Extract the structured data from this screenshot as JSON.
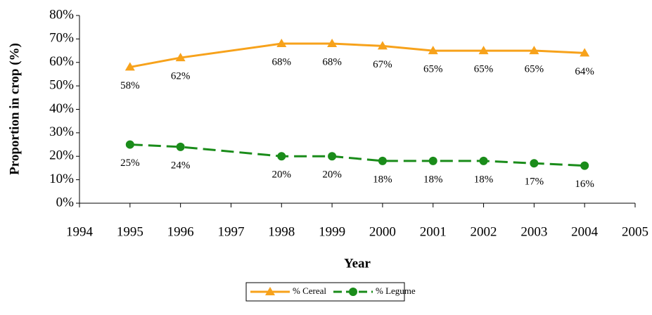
{
  "chart_data": {
    "type": "line",
    "y_label": "Proportion in crop (%)",
    "x_label": "Year",
    "x": [
      1995,
      1996,
      1998,
      1999,
      2000,
      2001,
      2002,
      2003,
      2004
    ],
    "series": [
      {
        "name": "% Cereal",
        "color": "#f7a21b",
        "marker": "triangle",
        "line_style": "solid",
        "values": [
          58,
          62,
          68,
          68,
          67,
          65,
          65,
          65,
          64
        ],
        "value_labels": [
          "58%",
          "62%",
          "68%",
          "68%",
          "67%",
          "65%",
          "65%",
          "65%",
          "64%"
        ]
      },
      {
        "name": "% Legume",
        "color": "#1a8c1a",
        "marker": "circle",
        "line_style": "dashed",
        "values": [
          25,
          24,
          20,
          20,
          18,
          18,
          18,
          17,
          16
        ],
        "value_labels": [
          "25%",
          "24%",
          "20%",
          "20%",
          "18%",
          "18%",
          "18%",
          "17%",
          "16%"
        ]
      }
    ],
    "xlim": [
      1994,
      2005
    ],
    "xticks": [
      1994,
      1995,
      1996,
      1997,
      1998,
      1999,
      2000,
      2001,
      2002,
      2003,
      2004,
      2005
    ],
    "ylim": [
      0,
      80
    ],
    "yticks": [
      {
        "value": 0,
        "label": "0%"
      },
      {
        "value": 10,
        "label": "10%"
      },
      {
        "value": 20,
        "label": "20%"
      },
      {
        "value": 30,
        "label": "30%"
      },
      {
        "value": 40,
        "label": "40%"
      },
      {
        "value": 50,
        "label": "50%"
      },
      {
        "value": 60,
        "label": "60%"
      },
      {
        "value": 70,
        "label": "70%"
      },
      {
        "value": 80,
        "label": "80%"
      }
    ],
    "grid": false,
    "legend": "bottom"
  }
}
